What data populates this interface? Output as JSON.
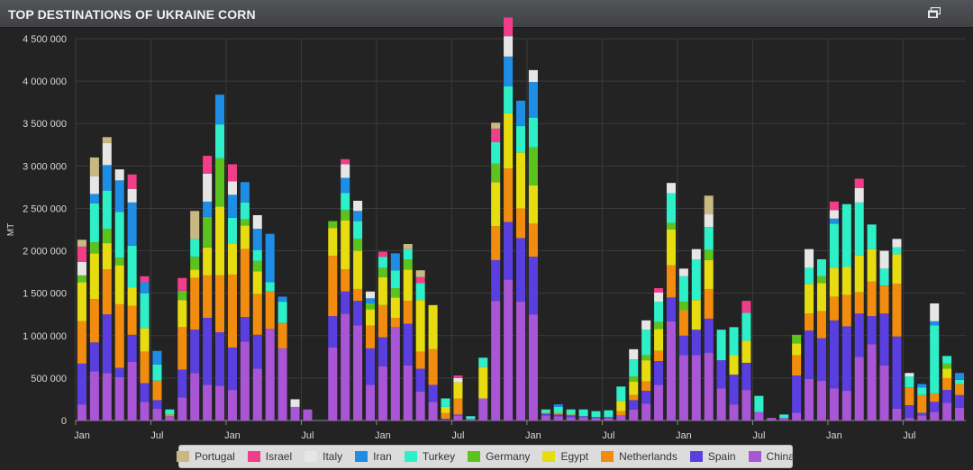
{
  "header": {
    "title": "TOP DESTINATIONS OF UKRAINE CORN",
    "expand_icon": "expand-window-icon"
  },
  "chart_data": {
    "type": "bar",
    "stacked": true,
    "title": "TOP DESTINATIONS OF UKRAINE CORN",
    "ylabel": "MT",
    "ylim": [
      0,
      4500000
    ],
    "yticks": [
      "0",
      "500 000",
      "1 000 000",
      "1 500 000",
      "2 000 000",
      "2 500 000",
      "3 000 000",
      "3 500 000",
      "4 000 000",
      "4 500 000"
    ],
    "xticks": [
      {
        "label": "Jan",
        "index": 0
      },
      {
        "label": "Jul",
        "index": 6
      },
      {
        "label": "Jan",
        "index": 12
      },
      {
        "label": "Jul",
        "index": 18
      },
      {
        "label": "Jan",
        "index": 24
      },
      {
        "label": "Jul",
        "index": 30
      },
      {
        "label": "Jan",
        "index": 36
      },
      {
        "label": "Jul",
        "index": 42
      },
      {
        "label": "Jan",
        "index": 48
      },
      {
        "label": "Jul",
        "index": 54
      },
      {
        "label": "Jan",
        "index": 60
      },
      {
        "label": "Jul",
        "index": 66
      },
      {
        "label": "Jan",
        "index": 72
      },
      {
        "label": "Jul",
        "index": 78
      }
    ],
    "grid": true,
    "legend_position": "bottom",
    "series": [
      {
        "name": "China",
        "color": "#a855d6",
        "values": [
          190000,
          580000,
          560000,
          510000,
          690000,
          220000,
          140000,
          50000,
          270000,
          560000,
          420000,
          410000,
          360000,
          930000,
          610000,
          1080000,
          850000,
          160000,
          130000,
          0,
          860000,
          1260000,
          1120000,
          420000,
          640000,
          1100000,
          650000,
          340000,
          220000,
          0,
          60000,
          20000,
          260000,
          1410000,
          1660000,
          1400000,
          1250000,
          60000,
          50000,
          40000,
          40000,
          30000,
          30000,
          60000,
          130000,
          200000,
          420000,
          1170000,
          770000,
          770000,
          800000,
          380000,
          190000,
          360000,
          100000,
          30000,
          30000,
          90000,
          490000,
          470000,
          380000,
          350000,
          750000,
          900000,
          650000,
          140000,
          30000,
          60000,
          100000,
          210000,
          150000
        ]
      },
      {
        "name": "Spain",
        "color": "#5a3fe0",
        "values": [
          480000,
          340000,
          690000,
          110000,
          320000,
          220000,
          100000,
          0,
          330000,
          510000,
          790000,
          630000,
          500000,
          290000,
          400000,
          0,
          0,
          0,
          0,
          0,
          370000,
          260000,
          290000,
          430000,
          340000,
          0,
          490000,
          270000,
          200000,
          20000,
          10000,
          0,
          0,
          480000,
          680000,
          750000,
          680000,
          20000,
          20000,
          20000,
          10000,
          10000,
          10000,
          0,
          110000,
          150000,
          280000,
          280000,
          230000,
          300000,
          400000,
          330000,
          350000,
          320000,
          0,
          0,
          0,
          440000,
          570000,
          500000,
          800000,
          760000,
          510000,
          330000,
          610000,
          850000,
          150000,
          30000,
          120000,
          150000,
          150000
        ]
      },
      {
        "name": "Netherlands",
        "color": "#f28c0f",
        "values": [
          500000,
          510000,
          530000,
          750000,
          340000,
          370000,
          230000,
          20000,
          500000,
          610000,
          500000,
          670000,
          860000,
          800000,
          480000,
          440000,
          300000,
          0,
          0,
          0,
          710000,
          260000,
          140000,
          270000,
          380000,
          110000,
          270000,
          200000,
          420000,
          70000,
          190000,
          0,
          0,
          400000,
          630000,
          350000,
          390000,
          10000,
          20000,
          10000,
          0,
          0,
          0,
          50000,
          60000,
          110000,
          120000,
          380000,
          300000,
          0,
          350000,
          0,
          0,
          0,
          0,
          0,
          0,
          240000,
          200000,
          320000,
          280000,
          370000,
          250000,
          410000,
          330000,
          620000,
          210000,
          210000,
          100000,
          140000,
          130000
        ]
      },
      {
        "name": "Egypt",
        "color": "#e6dc10",
        "values": [
          460000,
          540000,
          310000,
          460000,
          220000,
          280000,
          0,
          0,
          320000,
          100000,
          330000,
          810000,
          360000,
          280000,
          270000,
          0,
          0,
          0,
          0,
          0,
          330000,
          580000,
          450000,
          190000,
          330000,
          240000,
          370000,
          610000,
          520000,
          70000,
          190000,
          0,
          370000,
          520000,
          650000,
          660000,
          450000,
          0,
          0,
          0,
          0,
          0,
          0,
          120000,
          160000,
          250000,
          260000,
          420000,
          0,
          350000,
          340000,
          0,
          230000,
          260000,
          0,
          0,
          0,
          140000,
          350000,
          330000,
          340000,
          330000,
          440000,
          380000,
          0,
          350000,
          0,
          0,
          0,
          110000,
          0
        ]
      },
      {
        "name": "Germany",
        "color": "#5cc21e",
        "values": [
          80000,
          130000,
          170000,
          90000,
          0,
          0,
          0,
          0,
          110000,
          150000,
          360000,
          570000,
          0,
          70000,
          120000,
          0,
          0,
          0,
          0,
          0,
          80000,
          120000,
          140000,
          70000,
          110000,
          110000,
          120000,
          0,
          0,
          0,
          0,
          0,
          0,
          220000,
          0,
          0,
          450000,
          0,
          0,
          0,
          0,
          0,
          0,
          0,
          60000,
          60000,
          80000,
          80000,
          100000,
          0,
          120000,
          0,
          0,
          0,
          0,
          0,
          0,
          100000,
          0,
          80000,
          0,
          0,
          0,
          0,
          0,
          0,
          0,
          0,
          0,
          60000,
          0
        ]
      },
      {
        "name": "Turkey",
        "color": "#2ef0c8",
        "values": [
          0,
          460000,
          450000,
          540000,
          490000,
          410000,
          190000,
          60000,
          0,
          210000,
          0,
          400000,
          310000,
          200000,
          130000,
          110000,
          250000,
          0,
          0,
          0,
          0,
          200000,
          210000,
          0,
          130000,
          210000,
          120000,
          200000,
          0,
          100000,
          0,
          30000,
          110000,
          250000,
          320000,
          310000,
          350000,
          40000,
          70000,
          60000,
          80000,
          70000,
          80000,
          170000,
          200000,
          300000,
          240000,
          350000,
          300000,
          480000,
          270000,
          360000,
          330000,
          330000,
          190000,
          0,
          40000,
          0,
          190000,
          200000,
          520000,
          740000,
          620000,
          290000,
          200000,
          80000,
          130000,
          90000,
          800000,
          90000,
          50000
        ]
      },
      {
        "name": "Iran",
        "color": "#1e8de6",
        "values": [
          0,
          110000,
          300000,
          370000,
          510000,
          130000,
          160000,
          0,
          0,
          0,
          180000,
          350000,
          270000,
          240000,
          250000,
          570000,
          60000,
          0,
          0,
          0,
          0,
          180000,
          120000,
          60000,
          0,
          200000,
          0,
          0,
          0,
          0,
          0,
          0,
          0,
          0,
          350000,
          300000,
          420000,
          0,
          30000,
          0,
          0,
          0,
          0,
          0,
          0,
          0,
          0,
          0,
          0,
          0,
          0,
          0,
          0,
          0,
          0,
          0,
          0,
          0,
          0,
          0,
          60000,
          0,
          0,
          0,
          0,
          0,
          0,
          40000,
          50000,
          0,
          80000
        ]
      },
      {
        "name": "Italy",
        "color": "#e6e6e6",
        "values": [
          160000,
          210000,
          260000,
          130000,
          160000,
          0,
          0,
          0,
          0,
          0,
          330000,
          0,
          160000,
          0,
          160000,
          0,
          0,
          90000,
          0,
          0,
          0,
          160000,
          120000,
          80000,
          0,
          0,
          0,
          0,
          0,
          0,
          50000,
          0,
          0,
          0,
          240000,
          0,
          140000,
          0,
          0,
          0,
          0,
          0,
          0,
          0,
          120000,
          110000,
          110000,
          120000,
          90000,
          120000,
          150000,
          0,
          0,
          0,
          0,
          0,
          0,
          0,
          220000,
          0,
          100000,
          0,
          170000,
          0,
          210000,
          100000,
          40000,
          0,
          210000,
          0,
          0
        ]
      },
      {
        "name": "Israel",
        "color": "#f23d8a",
        "values": [
          180000,
          0,
          0,
          0,
          170000,
          70000,
          0,
          0,
          150000,
          0,
          210000,
          0,
          200000,
          0,
          0,
          0,
          0,
          0,
          0,
          0,
          0,
          60000,
          0,
          0,
          60000,
          0,
          0,
          70000,
          0,
          0,
          30000,
          0,
          0,
          160000,
          220000,
          0,
          0,
          0,
          0,
          0,
          0,
          0,
          0,
          0,
          0,
          0,
          50000,
          0,
          0,
          0,
          0,
          0,
          0,
          140000,
          0,
          0,
          0,
          0,
          0,
          0,
          100000,
          0,
          110000,
          0,
          0,
          0,
          0,
          0,
          0,
          0,
          0
        ]
      },
      {
        "name": "Portugal",
        "color": "#c8b983",
        "values": [
          80000,
          220000,
          70000,
          0,
          0,
          0,
          0,
          0,
          0,
          330000,
          0,
          0,
          0,
          0,
          0,
          0,
          0,
          0,
          0,
          0,
          0,
          0,
          0,
          0,
          0,
          0,
          60000,
          80000,
          0,
          0,
          0,
          0,
          0,
          70000,
          0,
          0,
          0,
          0,
          0,
          0,
          0,
          0,
          0,
          0,
          0,
          0,
          0,
          0,
          0,
          0,
          220000,
          0,
          0,
          0,
          0,
          0,
          0,
          0,
          0,
          0,
          0,
          0,
          0,
          0,
          0,
          0,
          0,
          0,
          0,
          0,
          0
        ]
      }
    ],
    "legend_order": [
      "Portugal",
      "Israel",
      "Italy",
      "Iran",
      "Turkey",
      "Germany",
      "Egypt",
      "Netherlands",
      "Spain",
      "China"
    ]
  }
}
